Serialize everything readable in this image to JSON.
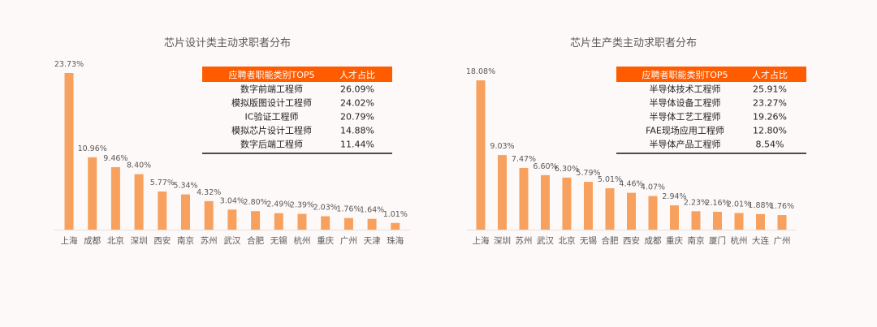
{
  "colors": {
    "bar": "#f8a15e",
    "header": "#ff5c00",
    "text": "#595959",
    "axis": "#e6e0dc"
  },
  "chart_data": [
    {
      "type": "bar",
      "title": "芯片设计类主动求职者分布",
      "categories": [
        "上海",
        "成都",
        "北京",
        "深圳",
        "西安",
        "南京",
        "苏州",
        "武汉",
        "合肥",
        "无锡",
        "杭州",
        "重庆",
        "广州",
        "天津",
        "珠海"
      ],
      "values": [
        23.73,
        10.96,
        9.46,
        8.4,
        5.77,
        5.34,
        4.32,
        3.04,
        2.8,
        2.49,
        2.39,
        2.03,
        1.76,
        1.64,
        1.01
      ],
      "value_labels": [
        "23.73%",
        "10.96%",
        "9.46%",
        "8.40%",
        "5.77%",
        "5.34%",
        "4.32%",
        "3.04%",
        "2.80%",
        "2.49%",
        "2.39%",
        "2.03%",
        "1.76%",
        "1.64%",
        "1.01%"
      ],
      "ylim": [
        0,
        25
      ],
      "table": {
        "headers": [
          "应聘者职能类别TOP5",
          "人才占比"
        ],
        "rows": [
          [
            "数字前端工程师",
            "26.09%"
          ],
          [
            "模拟版图设计工程师",
            "24.02%"
          ],
          [
            "IC验证工程师",
            "20.79%"
          ],
          [
            "模拟芯片设计工程师",
            "14.88%"
          ],
          [
            "数字后端工程师",
            "11.44%"
          ]
        ]
      }
    },
    {
      "type": "bar",
      "title": "芯片生产类主动求职者分布",
      "categories": [
        "上海",
        "深圳",
        "苏州",
        "武汉",
        "北京",
        "无锡",
        "合肥",
        "西安",
        "成都",
        "重庆",
        "南京",
        "厦门",
        "杭州",
        "大连",
        "广州"
      ],
      "values": [
        18.08,
        9.03,
        7.47,
        6.6,
        6.3,
        5.79,
        5.01,
        4.46,
        4.07,
        2.94,
        2.23,
        2.16,
        2.01,
        1.88,
        1.76
      ],
      "value_labels": [
        "18.08%",
        "9.03%",
        "7.47%",
        "6.60%",
        "6.30%",
        "5.79%",
        "5.01%",
        "4.46%",
        "4.07%",
        "2.94%",
        "2.23%",
        "2.16%",
        "2.01%",
        "1.88%",
        "1.76%"
      ],
      "ylim": [
        0,
        19
      ],
      "table": {
        "headers": [
          "应聘者职能类别TOP5",
          "人才占比"
        ],
        "rows": [
          [
            "半导体技术工程师",
            "25.91%"
          ],
          [
            "半导体设备工程师",
            "23.27%"
          ],
          [
            "半导体工艺工程师",
            "19.26%"
          ],
          [
            "FAE现场应用工程师",
            "12.80%"
          ],
          [
            "半导体产品工程师",
            "8.54%"
          ]
        ]
      }
    }
  ]
}
